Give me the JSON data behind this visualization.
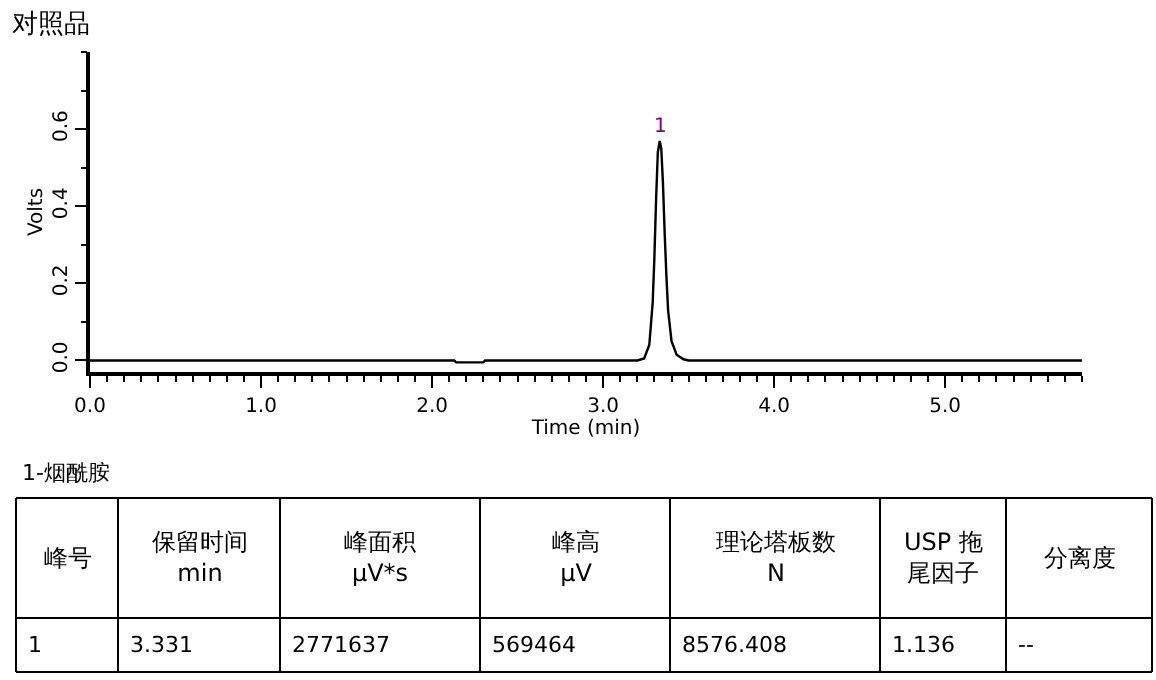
{
  "chart_data": {
    "type": "line",
    "title": "对照品",
    "xlabel": "Time (min)",
    "ylabel": "Volts",
    "x": [
      0,
      2.13,
      2.14,
      2.3,
      2.31,
      3.2,
      3.24,
      3.27,
      3.29,
      3.3,
      3.31,
      3.32,
      3.331,
      3.34,
      3.35,
      3.36,
      3.37,
      3.38,
      3.4,
      3.43,
      3.47,
      3.5,
      5.8
    ],
    "series": [
      {
        "color": "#000000",
        "values": [
          0,
          0,
          -0.005,
          -0.005,
          0,
          0,
          0.005,
          0.04,
          0.15,
          0.27,
          0.42,
          0.54,
          0.569,
          0.55,
          0.46,
          0.33,
          0.22,
          0.13,
          0.05,
          0.015,
          0.003,
          0,
          0
        ]
      }
    ],
    "xlim": [
      0,
      5.8
    ],
    "ylim": [
      -0.03,
      0.8
    ],
    "xticks": [
      {
        "value": 0,
        "label": "0.0"
      },
      {
        "value": 1,
        "label": "1.0"
      },
      {
        "value": 2,
        "label": "2.0"
      },
      {
        "value": 3,
        "label": "3.0"
      },
      {
        "value": 4,
        "label": "4.0"
      },
      {
        "value": 5,
        "label": "5.0"
      }
    ],
    "yticks": [
      {
        "value": 0,
        "label": "0.0"
      },
      {
        "value": 0.2,
        "label": "0.2"
      },
      {
        "value": 0.4,
        "label": "0.4"
      },
      {
        "value": 0.6,
        "label": "0.6"
      }
    ],
    "marker": "none",
    "line_style": "solid",
    "annotations": [
      {
        "text": "1",
        "x": 3.331,
        "y": 0.569
      },
      "1-烟酰胺",
      "峰号",
      "保留时间\nmin",
      "峰面积\nµV*s",
      "峰高\nµV",
      "理论塔板数\nN",
      "USP 拖尾因子",
      "分离度",
      "1",
      "3.331",
      "2771637",
      "569464",
      "8576.408",
      "1.136",
      "--"
    ]
  }
}
